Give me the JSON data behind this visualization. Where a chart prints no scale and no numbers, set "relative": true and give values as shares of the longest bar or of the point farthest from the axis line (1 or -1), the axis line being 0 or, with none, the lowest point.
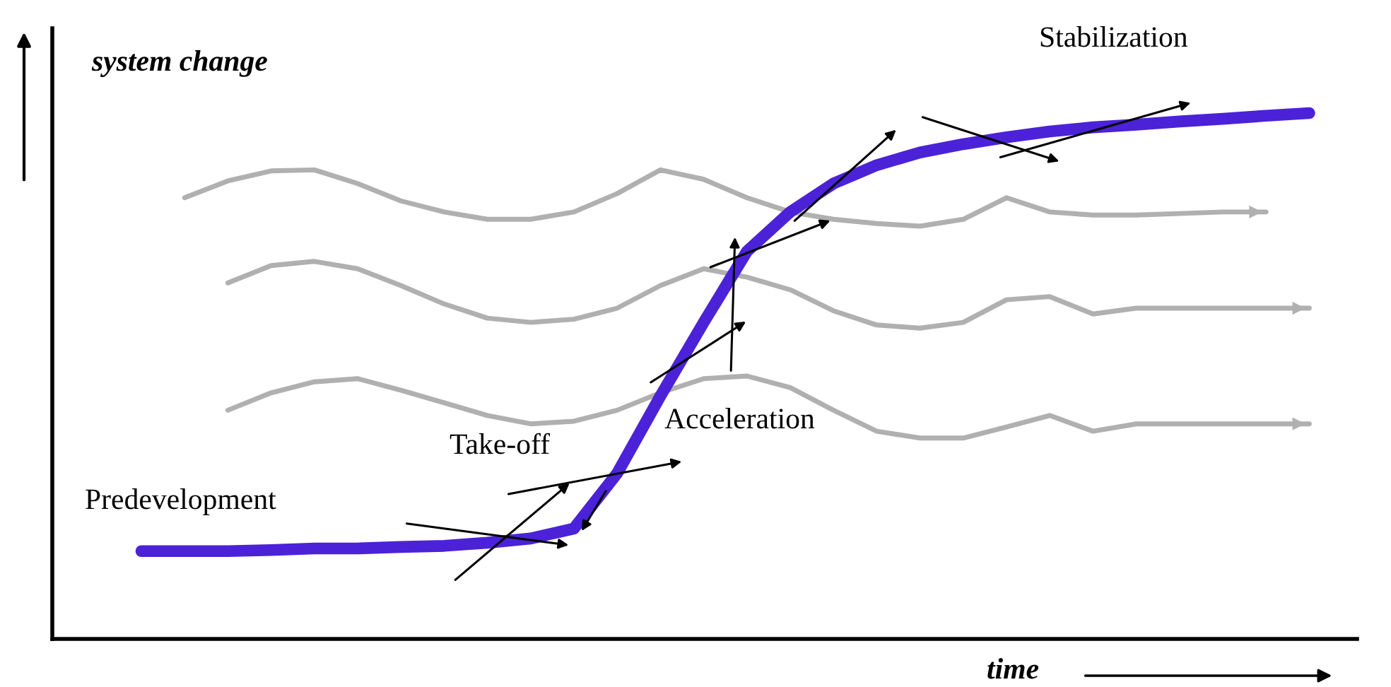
{
  "chart_data": {
    "type": "line",
    "relative": true,
    "xlabel": "time",
    "ylabel": "system change",
    "grid": false,
    "legend": false,
    "annotations": [
      "Predevelopment",
      "Take-off",
      "Acceleration",
      "Stabilization"
    ],
    "categories": [
      null,
      null,
      null,
      null,
      null,
      null,
      null,
      null,
      null,
      null,
      null,
      null,
      null,
      null,
      null,
      null,
      null,
      null,
      null,
      null,
      null,
      null,
      null,
      null,
      null,
      null,
      null,
      null
    ],
    "series": [
      {
        "color": "#b0b0b0",
        "values": [
          null,
          0.839,
          0.871,
          0.89,
          0.892,
          0.866,
          0.833,
          0.812,
          0.798,
          0.798,
          0.812,
          0.847,
          0.892,
          0.874,
          0.839,
          0.812,
          0.798,
          0.79,
          0.785,
          0.798,
          0.839,
          0.812,
          0.806,
          0.806,
          0.809,
          0.812,
          0.812,
          null
        ]
      },
      {
        "color": "#b0b0b0",
        "values": [
          null,
          null,
          0.677,
          0.71,
          0.718,
          0.704,
          0.672,
          0.637,
          0.61,
          0.602,
          0.608,
          0.629,
          0.672,
          0.704,
          0.688,
          0.664,
          0.624,
          0.597,
          0.591,
          0.602,
          0.645,
          0.651,
          0.618,
          0.629,
          0.629,
          0.629,
          0.629,
          0.629
        ]
      },
      {
        "color": "#b0b0b0",
        "values": [
          null,
          null,
          0.435,
          0.468,
          0.489,
          0.495,
          0.473,
          0.449,
          0.425,
          0.409,
          0.414,
          0.435,
          0.468,
          0.495,
          0.5,
          0.478,
          0.435,
          0.395,
          0.382,
          0.382,
          0.403,
          0.425,
          0.395,
          0.409,
          0.409,
          0.409,
          0.409,
          0.409
        ]
      },
      {
        "color": "#4b22d8",
        "values": [
          0.167,
          0.167,
          0.167,
          0.169,
          0.172,
          0.172,
          0.175,
          0.177,
          0.183,
          0.191,
          0.21,
          0.315,
          0.462,
          0.602,
          0.737,
          0.812,
          0.866,
          0.901,
          0.925,
          0.941,
          0.954,
          0.965,
          0.973,
          0.978,
          0.984,
          0.989,
          0.995,
          1.0
        ]
      }
    ]
  }
}
